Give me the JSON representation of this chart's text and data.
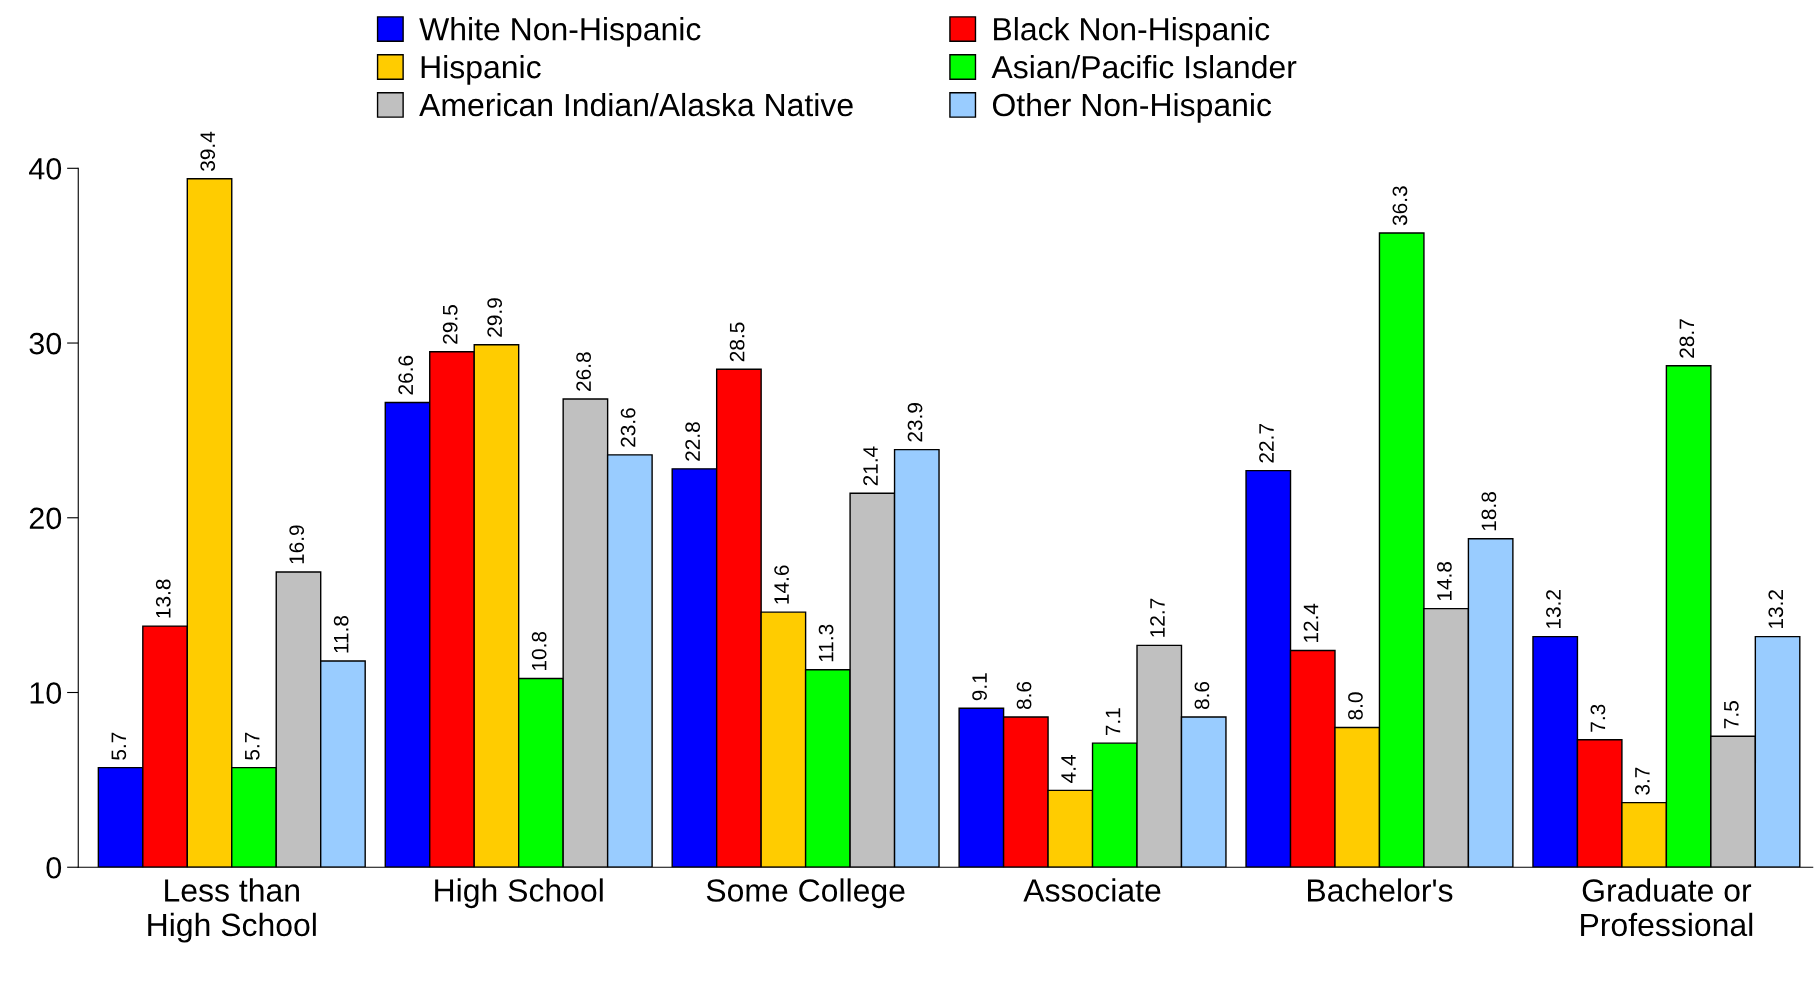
{
  "chart_data": {
    "type": "bar",
    "categories": [
      "Less than\nHigh School",
      "High School",
      "Some College",
      "Associate",
      "Bachelor's",
      "Graduate or\nProfessional"
    ],
    "series": [
      {
        "name": "White Non-Hispanic",
        "color": "#0000ff",
        "values": [
          5.7,
          26.6,
          22.8,
          9.1,
          22.7,
          13.2
        ],
        "value_labels": [
          "5.7",
          "26.6",
          "22.8",
          "9.1",
          "22.7",
          "13.2"
        ]
      },
      {
        "name": "Black Non-Hispanic",
        "color": "#ff0000",
        "values": [
          13.8,
          29.5,
          28.5,
          8.6,
          12.4,
          7.3
        ],
        "value_labels": [
          "13.8",
          "29.5",
          "28.5",
          "8.6",
          "12.4",
          "7.3"
        ]
      },
      {
        "name": "Hispanic",
        "color": "#ffcc00",
        "values": [
          39.4,
          29.9,
          14.6,
          4.4,
          8.0,
          3.7
        ],
        "value_labels": [
          "39.4",
          "29.9",
          "14.6",
          "4.4",
          "8.0",
          "3.7"
        ]
      },
      {
        "name": "Asian/Pacific Islander",
        "color": "#00ff00",
        "values": [
          5.7,
          10.8,
          11.3,
          7.1,
          36.3,
          28.7
        ],
        "value_labels": [
          "5.7",
          "10.8",
          "11.3",
          "7.1",
          "36.3",
          "28.7"
        ]
      },
      {
        "name": "American Indian/Alaska Native",
        "color": "#c0c0c0",
        "values": [
          16.9,
          26.8,
          21.4,
          12.7,
          14.8,
          7.5
        ],
        "value_labels": [
          "16.9",
          "26.8",
          "21.4",
          "12.7",
          "14.8",
          "7.5"
        ]
      },
      {
        "name": "Other Non-Hispanic",
        "color": "#99ccff",
        "values": [
          11.8,
          23.6,
          23.9,
          8.6,
          18.8,
          13.2
        ],
        "value_labels": [
          "11.8",
          "23.6",
          "23.9",
          "8.6",
          "18.8",
          "13.2"
        ]
      }
    ],
    "ylim": [
      0,
      40
    ],
    "yticks": [
      0,
      10,
      20,
      30,
      40
    ],
    "grid": false,
    "legend": "top"
  }
}
